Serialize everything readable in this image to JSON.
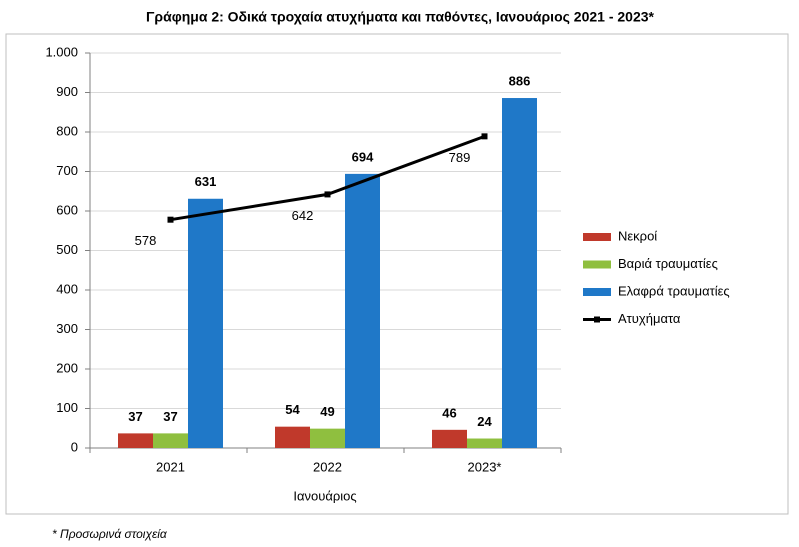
{
  "chart_data": {
    "type": "bar",
    "title": "Γράφημα 2: Οδικά τροχαία ατυχήματα και παθόντες, Ιανουάριος 2021 - 2023*",
    "xlabel": "Ιανουάριος",
    "footnote": "* Προσωρινά στοιχεία",
    "categories": [
      "2021",
      "2022",
      "2023*"
    ],
    "series": [
      {
        "name": "Νεκροί",
        "color": "#c0392b",
        "values": [
          37,
          54,
          46
        ]
      },
      {
        "name": "Βαριά τραυματίες",
        "color": "#8fbf3f",
        "values": [
          37,
          49,
          24
        ]
      },
      {
        "name": "Ελαφρά τραυματίες",
        "color": "#1f78c8",
        "values": [
          631,
          694,
          886
        ]
      },
      {
        "name": "Ατυχήματα",
        "color": "#000000",
        "type": "line",
        "values": [
          578,
          642,
          789
        ]
      }
    ],
    "ylim": [
      0,
      1000
    ],
    "yticks": [
      0,
      100,
      200,
      300,
      400,
      500,
      600,
      700,
      800,
      900,
      {
        "value": 1000,
        "label": "1.000"
      }
    ],
    "grid": true,
    "legend": "right"
  }
}
